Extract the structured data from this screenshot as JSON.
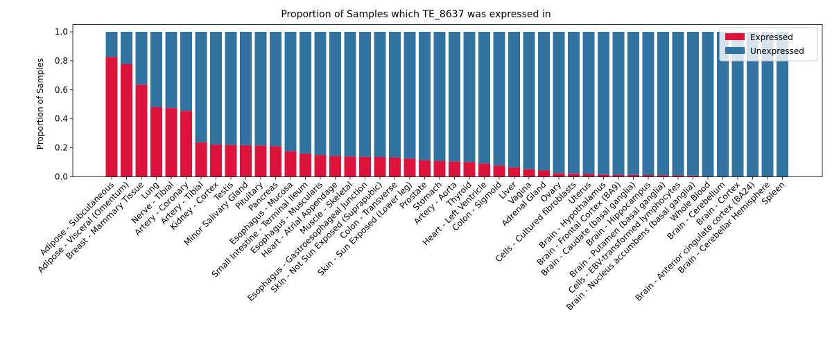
{
  "chart_data": {
    "type": "bar",
    "stacked": true,
    "title": "Proportion of Samples which TE_8637 was expressed in",
    "xlabel": "",
    "ylabel": "Proportion of Samples",
    "ylim": [
      0,
      1.05
    ],
    "yticks": [
      "0.0",
      "0.2",
      "0.4",
      "0.6",
      "0.8",
      "1.0"
    ],
    "grid": false,
    "legend_position": "top-right",
    "categories": [
      "Adipose - Subcutaneous",
      "Adipose - Visceral (Omentum)",
      "Breast - Mammary Tissue",
      "Lung",
      "Nerve - Tibial",
      "Artery - Coronary",
      "Artery - Tibial",
      "Kidney - Cortex",
      "Testis",
      "Minor Salivary Gland",
      "Pituitary",
      "Pancreas",
      "Esophagus - Mucosa",
      "Small Intestine - Terminal Ileum",
      "Esophagus - Muscularis",
      "Heart - Atrial Appendage",
      "Muscle - Skeletal",
      "Esophagus - Gastroesophageal Junction",
      "Skin - Not Sun Exposed (Suprapubic)",
      "Colon - Transverse",
      "Skin - Sun Exposed (Lower leg)",
      "Prostate",
      "Stomach",
      "Artery - Aorta",
      "Thyroid",
      "Heart - Left Ventricle",
      "Colon - Sigmoid",
      "Liver",
      "Vagina",
      "Adrenal Gland",
      "Ovary",
      "Cells - Cultured fibroblasts",
      "Uterus",
      "Brain - Hypothalamus",
      "Brain - Frontal Cortex (BA9)",
      "Brain - Caudate (basal ganglia)",
      "Brain - Hippocampus",
      "Brain - Putamen (basal ganglia)",
      "Cells - EBV-transformed lymphocytes",
      "Brain - Nucleus accumbens (basal ganglia)",
      "Whole Blood",
      "Brain - Cerebellum",
      "Brain - Cortex",
      "Brain - Anterior cingulate cortex (BA24)",
      "Brain - Cerebellar Hemisphere",
      "Spleen"
    ],
    "series": [
      {
        "name": "Expressed",
        "color": "#dc143c",
        "values": [
          0.826,
          0.778,
          0.636,
          0.482,
          0.474,
          0.455,
          0.238,
          0.222,
          0.22,
          0.218,
          0.216,
          0.212,
          0.178,
          0.16,
          0.15,
          0.145,
          0.14,
          0.138,
          0.136,
          0.134,
          0.126,
          0.115,
          0.11,
          0.106,
          0.102,
          0.092,
          0.078,
          0.065,
          0.052,
          0.045,
          0.025,
          0.022,
          0.02,
          0.016,
          0.014,
          0.013,
          0.012,
          0.011,
          0.01,
          0.008,
          0.0,
          0.0,
          0.0,
          0.0,
          0.0,
          0.0
        ]
      },
      {
        "name": "Unexpressed",
        "color": "#3274a1",
        "values": [
          0.174,
          0.222,
          0.364,
          0.518,
          0.526,
          0.545,
          0.762,
          0.778,
          0.78,
          0.782,
          0.784,
          0.788,
          0.822,
          0.84,
          0.85,
          0.855,
          0.86,
          0.862,
          0.864,
          0.866,
          0.874,
          0.885,
          0.89,
          0.894,
          0.898,
          0.908,
          0.922,
          0.935,
          0.948,
          0.955,
          0.975,
          0.978,
          0.98,
          0.984,
          0.986,
          0.987,
          0.988,
          0.989,
          0.99,
          0.992,
          1.0,
          1.0,
          1.0,
          1.0,
          1.0,
          1.0
        ]
      }
    ]
  }
}
